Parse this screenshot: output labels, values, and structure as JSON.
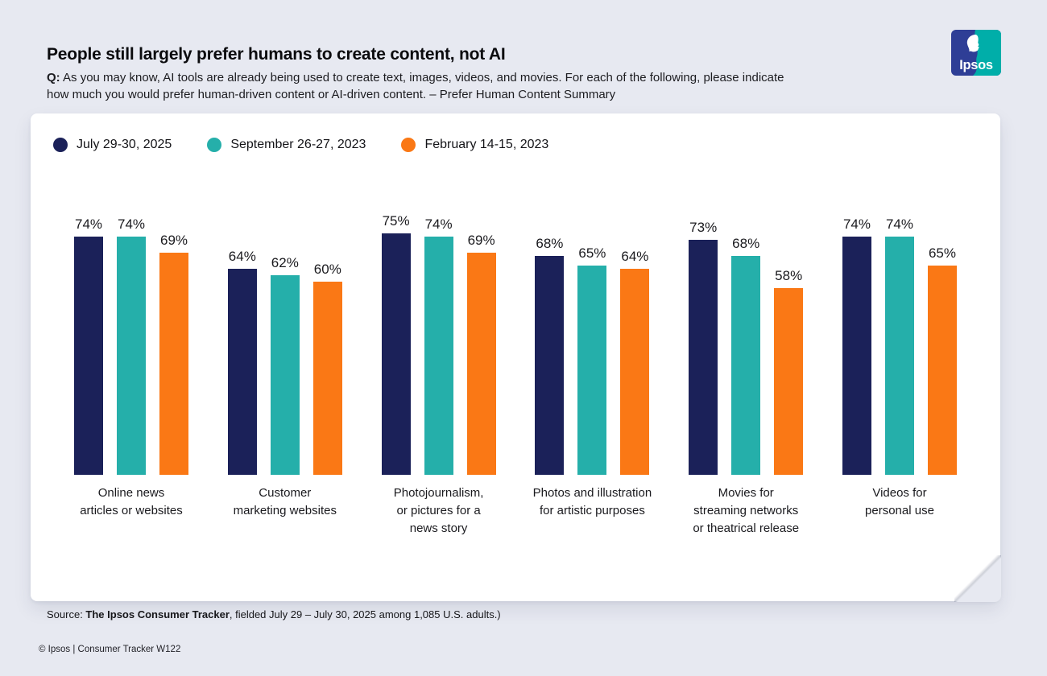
{
  "page": {
    "title": "People still largely prefer humans to create content, not AI",
    "question_prefix": "Q:",
    "question": "As you may know, AI tools are already being used to create text, images, videos, and movies. For each of the following, please indicate\nhow much you would prefer human-driven content or AI-driven content. – Prefer Human Content Summary"
  },
  "logo": {
    "text": "Ipsos",
    "blue": "#2e3e96",
    "teal": "#00aea9"
  },
  "chart_data": {
    "type": "bar",
    "title": "People still largely prefer humans to create content, not AI",
    "categories": [
      "Online news\narticles or websites",
      "Customer\nmarketing websites",
      "Photojournalism,\nor pictures for a\nnews story",
      "Photos and illustration\nfor artistic purposes",
      "Movies for\nstreaming networks\nor theatrical release",
      "Videos for\npersonal use"
    ],
    "series": [
      {
        "name": "July 29-30, 2025",
        "color": "#1b2159",
        "values": [
          74,
          64,
          75,
          68,
          73,
          74
        ]
      },
      {
        "name": "September 26-27, 2023",
        "color": "#25afaa",
        "values": [
          74,
          62,
          74,
          65,
          68,
          74
        ]
      },
      {
        "name": "February 14-15, 2023",
        "color": "#fa7815",
        "values": [
          69,
          60,
          69,
          64,
          58,
          65
        ]
      }
    ],
    "value_suffix": "%",
    "ylim": [
      0,
      100
    ],
    "grid": false,
    "axis_lines": false,
    "legend_position": "top-left"
  },
  "source": {
    "prefix": "Source: ",
    "bold": "The Ipsos Consumer Tracker",
    "rest": ", fielded July 29 – July 30, 2025 among 1,085 U.S. adults.)"
  },
  "footer": {
    "text": "© Ipsos | Consumer Tracker W122"
  }
}
